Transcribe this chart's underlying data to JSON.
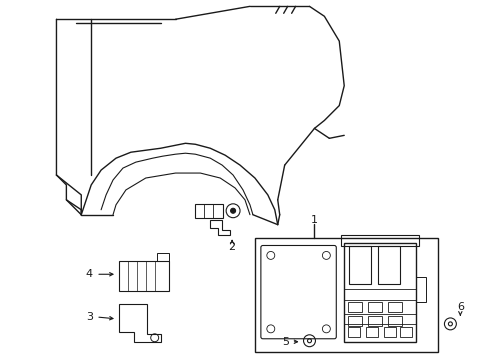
{
  "bg_color": "#ffffff",
  "line_color": "#1a1a1a",
  "lw": 1.0,
  "fig_width": 4.89,
  "fig_height": 3.6,
  "dpi": 100
}
